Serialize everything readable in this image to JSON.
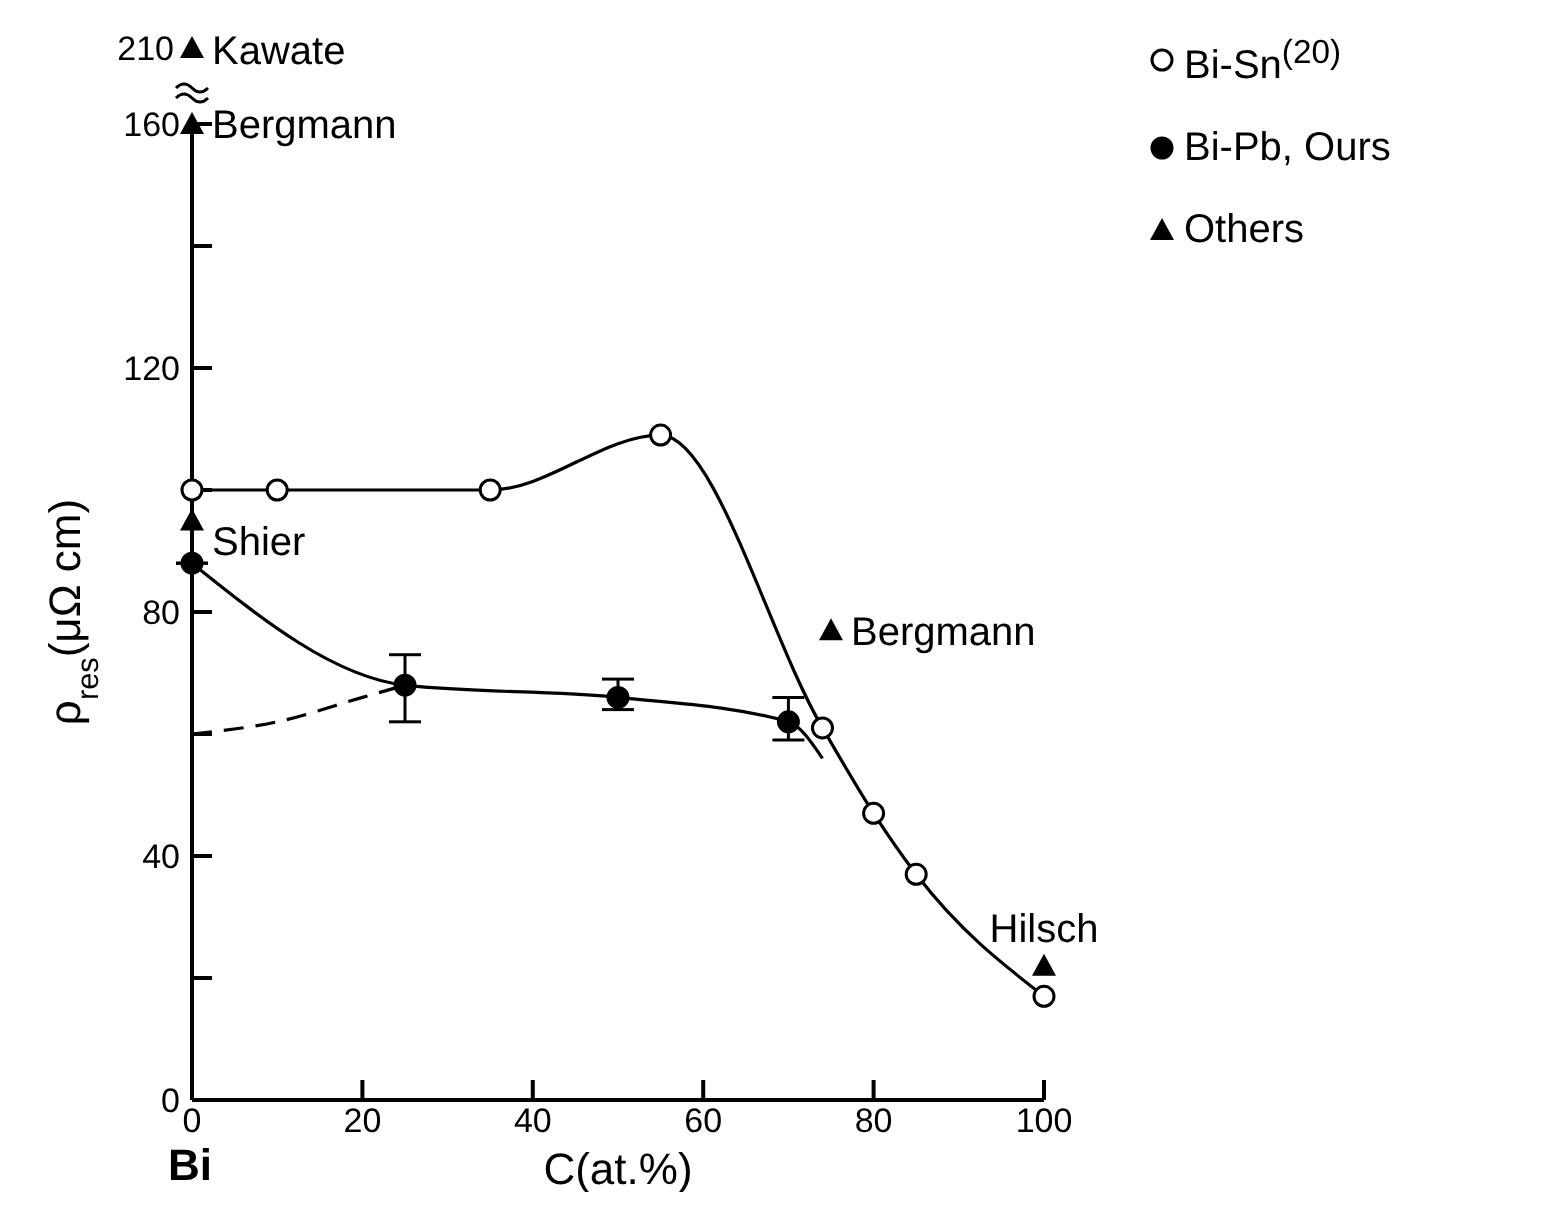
{
  "chart_data": {
    "type": "line",
    "xlabel": "C(at.%)",
    "ylabel": "ρ$_{res}$(μΩ cm)",
    "xlim": [
      0,
      100
    ],
    "xticks": [
      0,
      20,
      40,
      60,
      80,
      100
    ],
    "ylim": [
      0,
      160
    ],
    "yticks": [
      0,
      {
        "value": 20,
        "label": null
      },
      40,
      {
        "value": 60,
        "label": null
      },
      80,
      {
        "value": 100,
        "label": null
      },
      120,
      {
        "value": 140,
        "label": null
      },
      160
    ],
    "grid": false,
    "legend": "top right",
    "series": [
      {
        "name": "Bi-Sn$^{(20)}$",
        "marker": "circle",
        "color": "#000000",
        "x": [
          0,
          10,
          35,
          55,
          74,
          80,
          85,
          100
        ],
        "values": [
          100,
          100,
          100,
          109,
          61,
          47,
          37,
          17
        ]
      },
      {
        "name": "Bi-Pb, Ours",
        "type": "scatter",
        "marker": "circle",
        "color": "#000000",
        "x": [
          0,
          25,
          50,
          70
        ],
        "values": [
          88,
          68,
          66,
          62
        ],
        "errors": [
          null,
          [
            62,
            73
          ],
          [
            64,
            69
          ],
          [
            59,
            66
          ]
        ]
      },
      {
        "marker": "none",
        "color": "#000000",
        "x": [
          0,
          25,
          50,
          70,
          74
        ],
        "values": [
          88,
          68,
          66,
          62,
          56
        ]
      },
      {
        "marker": "none",
        "line_style": "dashed",
        "color": "#000000",
        "x": [
          0,
          10,
          20,
          25
        ],
        "values": [
          60,
          62,
          66,
          68
        ]
      },
      {
        "name": "Others",
        "type": "scatter",
        "marker": "triangle",
        "color": "#000000",
        "x": [
          0,
          0,
          75,
          100
        ],
        "values": [
          160,
          95,
          77,
          22
        ]
      }
    ],
    "annotations": [
      "Bi",
      "210",
      "Kawate",
      {
        "text": "Bergmann",
        "x": 0,
        "y": 160
      },
      {
        "text": "Shier",
        "x": 0,
        "y": 95
      },
      {
        "text": "Bergmann",
        "x": 75,
        "y": 77
      },
      {
        "text": "Hilsch",
        "x": 100,
        "y": 22
      }
    ]
  }
}
